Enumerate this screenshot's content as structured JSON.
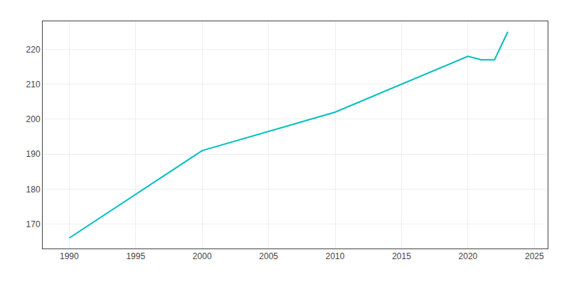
{
  "chart_data": {
    "type": "line",
    "x": [
      1990,
      2000,
      2010,
      2020,
      2021,
      2022,
      2023
    ],
    "values": [
      166,
      191,
      202,
      218,
      217,
      217,
      225
    ],
    "color": "#00BFBF",
    "xlim": [
      1988,
      2026
    ],
    "ylim": [
      163,
      228
    ],
    "xticks": [
      1990,
      1995,
      2000,
      2005,
      2010,
      2015,
      2020,
      2025
    ],
    "yticks": [
      170,
      180,
      190,
      200,
      210,
      220
    ],
    "grid": true
  }
}
